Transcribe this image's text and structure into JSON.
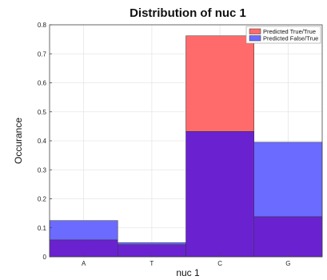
{
  "chart_data": {
    "type": "bar",
    "title": "Distribution of nuc 1",
    "xlabel": "nuc 1",
    "ylabel": "Occurance",
    "categories": [
      "A",
      "T",
      "C",
      "G"
    ],
    "ylim": [
      0,
      0.8
    ],
    "yticks": [
      0,
      0.1,
      0.2,
      0.3,
      0.4,
      0.5,
      0.6,
      0.7,
      0.8
    ],
    "ytick_labels": [
      "0",
      "0.1",
      "0.2",
      "0.3",
      "0.4",
      "0.5",
      "0.6",
      "0.7",
      "0.8"
    ],
    "grid": true,
    "legend_position": "top-right",
    "overlay": true,
    "series": [
      {
        "name": "Predicted True/True",
        "color": "#ff6b6b",
        "values": [
          0.058,
          0.042,
          0.762,
          0.138
        ]
      },
      {
        "name": "Predicted False/True",
        "color": "#6b6bff",
        "values": [
          0.125,
          0.049,
          0.432,
          0.395
        ]
      }
    ],
    "overlap_color": "#6a22d0"
  }
}
